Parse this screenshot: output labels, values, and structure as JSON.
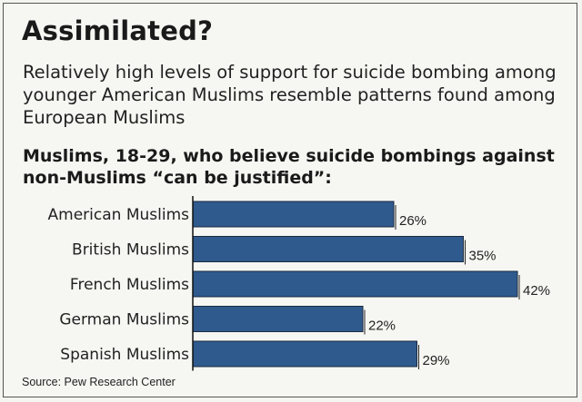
{
  "chart_data": {
    "type": "bar",
    "orientation": "horizontal",
    "title": "Assimilated?",
    "subtitle": "Relatively high levels of support for suicide bombing among younger American Muslims resemble patterns found among European Muslims",
    "question": "Muslims, 18-29, who believe suicide bombings against non-Muslims “can be justified”:",
    "categories": [
      "American Muslims",
      "British Muslims",
      "French Muslims",
      "German Muslims",
      "Spanish Muslims"
    ],
    "values": [
      26,
      35,
      42,
      22,
      29
    ],
    "value_labels": [
      "26%",
      "35%",
      "42%",
      "22%",
      "29%"
    ],
    "unit": "%",
    "xlim": [
      0,
      42
    ],
    "bar_color": "#2f5a8e",
    "source": "Source: Pew Research Center"
  }
}
